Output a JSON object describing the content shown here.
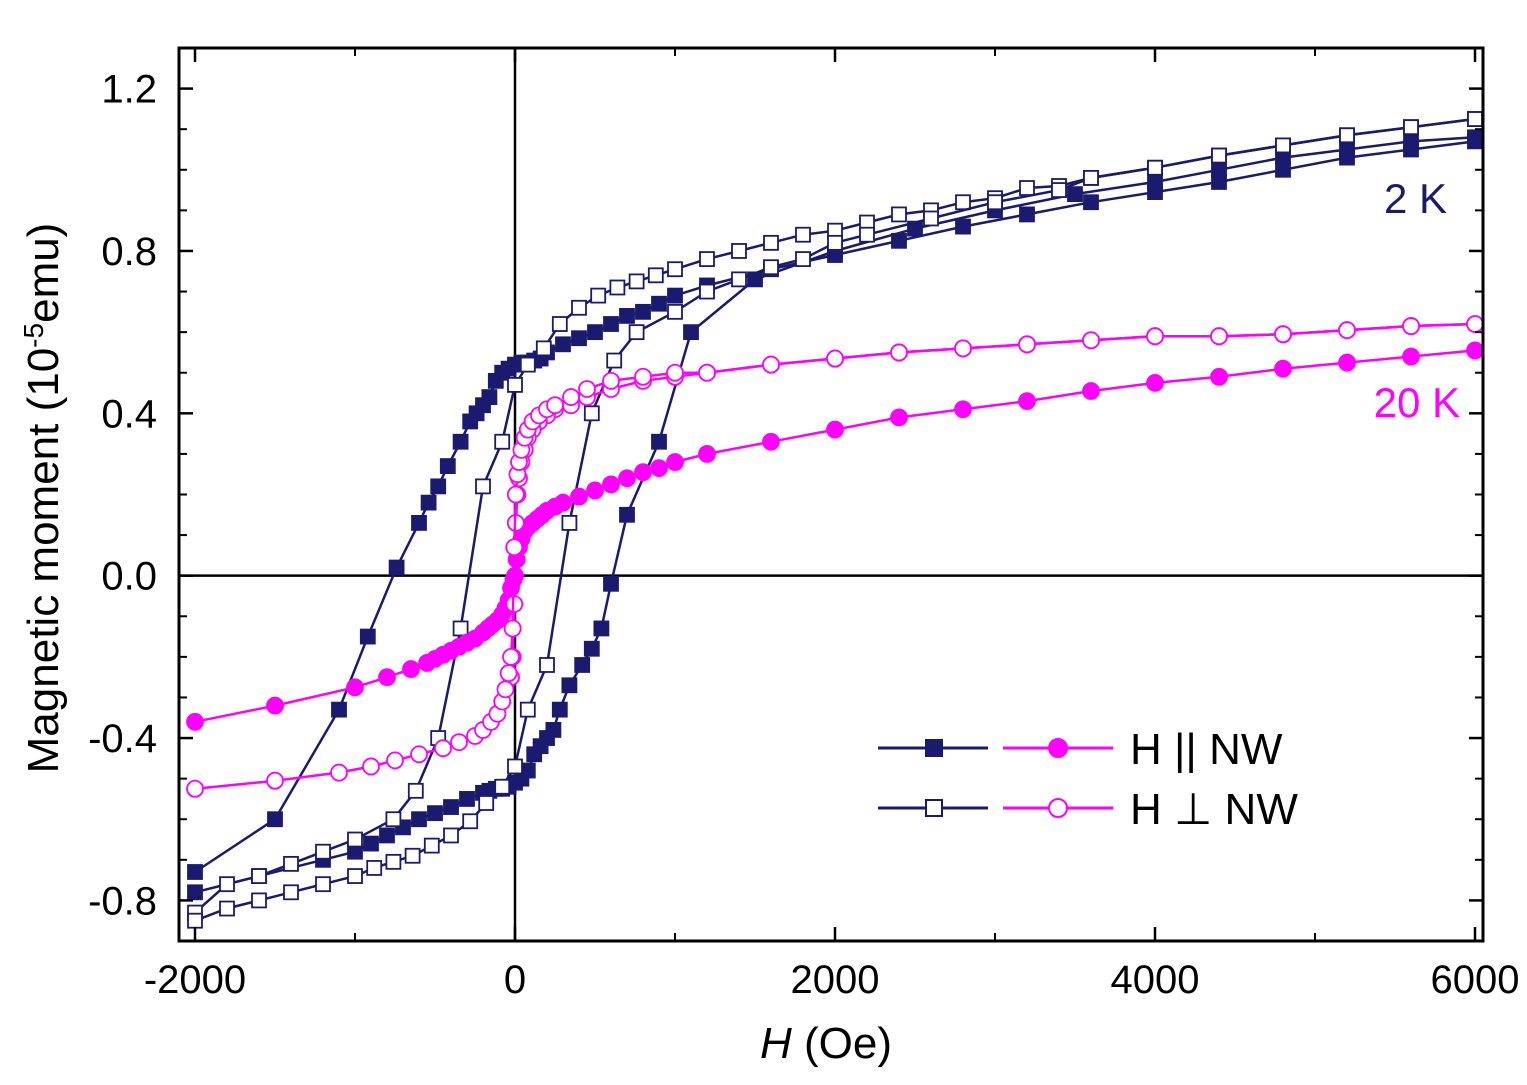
{
  "chart_data": {
    "type": "line",
    "xlabel_italic": "H",
    "xlabel_unit": " (Oe)",
    "ylabel_main": "Magnetic moment (10",
    "ylabel_sup": "-5",
    "ylabel_end": "emu)",
    "xlim": [
      -2100,
      6050
    ],
    "ylim": [
      -0.9,
      1.3
    ],
    "xticks": [
      -2000,
      0,
      2000,
      4000,
      6000
    ],
    "xtick_labels": [
      "-2000",
      "0",
      "2000",
      "4000",
      "6000"
    ],
    "yticks": [
      -0.8,
      -0.4,
      0.0,
      0.4,
      0.8,
      1.2
    ],
    "ytick_labels": [
      "-0.8",
      "-0.4",
      "0.0",
      "0.4",
      "0.8",
      "1.2"
    ],
    "zero_lines": true,
    "legend": {
      "placement": "bottom-right",
      "entries": [
        {
          "label": "H || NW"
        },
        {
          "label": "H ⊥ NW"
        }
      ]
    },
    "annotations": [
      {
        "text": "2 K",
        "color": "#1a1a6e",
        "x": 5700,
        "y": 0.93
      },
      {
        "text": "20 K",
        "color": "#ff00ff",
        "x": 5600,
        "y": 0.42
      }
    ],
    "colors": {
      "k2": "#1a1a6e",
      "k20": "#ff00ff"
    },
    "series": [
      {
        "temp": "2 K",
        "orientation": "parallel",
        "marker": "square-filled",
        "branch": "descending",
        "x": [
          6000,
          5600,
          5200,
          4800,
          4400,
          4000,
          3600,
          3200,
          2800,
          2400,
          2000,
          1600,
          1200,
          1000,
          900,
          800,
          700,
          600,
          500,
          400,
          300,
          200,
          160,
          120,
          80,
          40,
          0,
          -40,
          -80,
          -120,
          -160,
          -200,
          -240,
          -280,
          -340,
          -420,
          -480,
          -540,
          -600,
          -740,
          -920,
          -1100,
          -1500,
          -2000
        ],
        "y": [
          1.07,
          1.05,
          1.03,
          1.0,
          0.97,
          0.945,
          0.92,
          0.89,
          0.86,
          0.825,
          0.79,
          0.755,
          0.715,
          0.69,
          0.67,
          0.65,
          0.64,
          0.62,
          0.6,
          0.585,
          0.57,
          0.55,
          0.535,
          0.53,
          0.525,
          0.525,
          0.52,
          0.51,
          0.5,
          0.48,
          0.44,
          0.42,
          0.4,
          0.38,
          0.33,
          0.27,
          0.22,
          0.18,
          0.13,
          0.02,
          -0.15,
          -0.33,
          -0.6,
          -0.73
        ]
      },
      {
        "temp": "2 K",
        "orientation": "parallel",
        "marker": "square-filled",
        "branch": "ascending",
        "x": [
          -2000,
          -1600,
          -1200,
          -1000,
          -900,
          -800,
          -700,
          -600,
          -500,
          -400,
          -300,
          -200,
          -160,
          -120,
          -80,
          -40,
          0,
          40,
          80,
          120,
          160,
          200,
          240,
          280,
          340,
          420,
          480,
          540,
          600,
          700,
          900,
          1100,
          1500,
          2000,
          2500,
          3000,
          3500,
          4000,
          4400,
          4800,
          5200,
          5600,
          6000
        ],
        "y": [
          -0.78,
          -0.74,
          -0.7,
          -0.68,
          -0.66,
          -0.64,
          -0.62,
          -0.6,
          -0.585,
          -0.57,
          -0.55,
          -0.535,
          -0.53,
          -0.525,
          -0.525,
          -0.52,
          -0.51,
          -0.5,
          -0.48,
          -0.44,
          -0.42,
          -0.4,
          -0.38,
          -0.33,
          -0.27,
          -0.22,
          -0.18,
          -0.13,
          -0.02,
          0.15,
          0.33,
          0.6,
          0.73,
          0.8,
          0.855,
          0.9,
          0.94,
          0.97,
          1.0,
          1.03,
          1.05,
          1.07,
          1.08
        ]
      },
      {
        "temp": "2 K",
        "orientation": "perpendicular",
        "marker": "square-open",
        "branch": "descending",
        "x": [
          6000,
          5600,
          5200,
          4800,
          4400,
          4000,
          3600,
          3400,
          3200,
          3000,
          2800,
          2600,
          2400,
          2200,
          2000,
          1800,
          1600,
          1400,
          1200,
          1000,
          880,
          760,
          640,
          520,
          400,
          280,
          180,
          80,
          0,
          -80,
          -200,
          -340,
          -480,
          -620,
          -760,
          -1000,
          -1200,
          -1400,
          -1600,
          -1800,
          -2000
        ],
        "y": [
          1.125,
          1.105,
          1.085,
          1.06,
          1.035,
          1.005,
          0.98,
          0.96,
          0.955,
          0.93,
          0.92,
          0.9,
          0.89,
          0.87,
          0.85,
          0.84,
          0.82,
          0.8,
          0.78,
          0.755,
          0.74,
          0.725,
          0.71,
          0.69,
          0.66,
          0.62,
          0.56,
          0.52,
          0.47,
          0.33,
          0.22,
          -0.13,
          -0.4,
          -0.53,
          -0.6,
          -0.65,
          -0.68,
          -0.71,
          -0.74,
          -0.76,
          -0.83
        ]
      },
      {
        "temp": "2 K",
        "orientation": "perpendicular",
        "marker": "square-open",
        "branch": "ascending",
        "x": [
          -2000,
          -1800,
          -1600,
          -1400,
          -1200,
          -1000,
          -880,
          -760,
          -640,
          -520,
          -400,
          -280,
          -180,
          -80,
          0,
          80,
          200,
          340,
          480,
          620,
          760,
          1000,
          1200,
          1400,
          1600,
          1800,
          2000,
          2200,
          2600,
          3000,
          3400,
          3600,
          4000,
          4400,
          4800,
          5200,
          5600,
          6000
        ],
        "y": [
          -0.85,
          -0.82,
          -0.8,
          -0.78,
          -0.76,
          -0.74,
          -0.72,
          -0.705,
          -0.69,
          -0.665,
          -0.64,
          -0.605,
          -0.56,
          -0.52,
          -0.47,
          -0.33,
          -0.22,
          0.13,
          0.4,
          0.53,
          0.6,
          0.65,
          0.7,
          0.73,
          0.76,
          0.78,
          0.82,
          0.84,
          0.88,
          0.92,
          0.95,
          0.98,
          1.005,
          1.035,
          1.06,
          1.085,
          1.105,
          1.125
        ]
      },
      {
        "temp": "20 K",
        "orientation": "parallel",
        "marker": "circle-filled",
        "x": [
          -2000,
          -1500,
          -1000,
          -800,
          -650,
          -550,
          -500,
          -450,
          -400,
          -350,
          -300,
          -250,
          -200,
          -170,
          -140,
          -110,
          -80,
          -60,
          -40,
          -25,
          -10,
          0,
          10,
          25,
          40,
          60,
          80,
          110,
          140,
          170,
          200,
          250,
          300,
          400,
          500,
          600,
          700,
          800,
          900,
          1000,
          1200,
          1600,
          2000,
          2400,
          2800,
          3200,
          3600,
          4000,
          4400,
          4800,
          5200,
          5600,
          6000
        ],
        "y": [
          -0.36,
          -0.32,
          -0.275,
          -0.25,
          -0.23,
          -0.215,
          -0.205,
          -0.195,
          -0.185,
          -0.175,
          -0.165,
          -0.155,
          -0.14,
          -0.13,
          -0.12,
          -0.11,
          -0.095,
          -0.08,
          -0.06,
          -0.03,
          -0.01,
          0.0,
          0.04,
          0.07,
          0.09,
          0.11,
          0.12,
          0.13,
          0.14,
          0.15,
          0.16,
          0.17,
          0.18,
          0.195,
          0.21,
          0.225,
          0.24,
          0.255,
          0.265,
          0.28,
          0.3,
          0.33,
          0.36,
          0.39,
          0.41,
          0.43,
          0.455,
          0.475,
          0.49,
          0.51,
          0.525,
          0.54,
          0.555
        ]
      },
      {
        "temp": "20 K",
        "orientation": "perpendicular",
        "marker": "circle-open",
        "branch": "descending",
        "x": [
          6000,
          5600,
          5200,
          4800,
          4400,
          4000,
          3600,
          3200,
          2800,
          2400,
          2000,
          1600,
          1200,
          1000,
          800,
          600,
          450,
          350,
          250,
          200,
          150,
          110,
          80,
          60,
          40,
          25,
          15,
          5,
          -5,
          -15,
          -25
        ],
        "y": [
          0.62,
          0.615,
          0.605,
          0.595,
          0.59,
          0.59,
          0.58,
          0.57,
          0.56,
          0.55,
          0.535,
          0.52,
          0.5,
          0.49,
          0.48,
          0.46,
          0.44,
          0.42,
          0.41,
          0.395,
          0.38,
          0.36,
          0.34,
          0.31,
          0.28,
          0.24,
          0.2,
          0.13,
          -0.07,
          -0.2,
          -0.25
        ]
      },
      {
        "temp": "20 K",
        "orientation": "perpendicular",
        "marker": "circle-open",
        "branch": "ascending",
        "x": [
          -2000,
          -1500,
          -1100,
          -900,
          -750,
          -600,
          -450,
          -350,
          -250,
          -200,
          -150,
          -110,
          -80,
          -60,
          -40,
          -25,
          -15,
          -5,
          5,
          15,
          25,
          40,
          60,
          80,
          110,
          150,
          200,
          250,
          350,
          450,
          600,
          800,
          1000,
          1200,
          1600,
          2000,
          2400,
          2800,
          3200,
          3600,
          4000,
          4400,
          4800,
          5200,
          5600,
          6000
        ],
        "y": [
          -0.525,
          -0.505,
          -0.485,
          -0.47,
          -0.455,
          -0.44,
          -0.425,
          -0.41,
          -0.395,
          -0.38,
          -0.36,
          -0.34,
          -0.31,
          -0.28,
          -0.24,
          -0.2,
          -0.13,
          0.07,
          0.2,
          0.25,
          0.28,
          0.31,
          0.34,
          0.36,
          0.38,
          0.395,
          0.41,
          0.42,
          0.44,
          0.46,
          0.48,
          0.49,
          0.5,
          0.5,
          0.52,
          0.535,
          0.55,
          0.56,
          0.57,
          0.58,
          0.59,
          0.59,
          0.595,
          0.605,
          0.615,
          0.62
        ]
      }
    ]
  }
}
